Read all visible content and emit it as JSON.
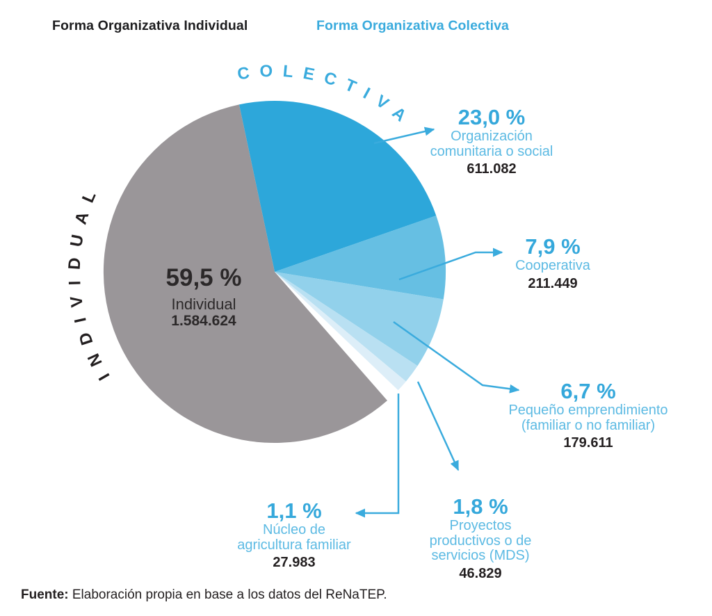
{
  "header": {
    "left_title": "Forma Organizativa Individual",
    "right_title": "Forma Organizativa Colectiva"
  },
  "arc_labels": {
    "individual": "INDIVIDUAL",
    "colectiva": "COLECTIVA"
  },
  "colors": {
    "accent_blue": "#3aabdd",
    "percent_blue": "#35a8db",
    "label_blue": "#5cbae3",
    "count_dark": "#231f20",
    "gray_slice": "#9a9699"
  },
  "chart_data": {
    "type": "pie",
    "legend_position": "around-pie",
    "slices": [
      {
        "label": "Individual",
        "group": "individual",
        "pct": 59.5,
        "pct_display": "59,5 %",
        "value": 1584624,
        "value_display": "1.584.624",
        "color": "#9a9699",
        "label_lines": [
          "Individual"
        ]
      },
      {
        "label": "Organización comunitaria o social",
        "group": "colectiva",
        "pct": 23.0,
        "pct_display": "23,0 %",
        "value": 611082,
        "value_display": "611.082",
        "color": "#2da7da",
        "label_lines": [
          "Organización",
          "comunitaria o social"
        ]
      },
      {
        "label": "Cooperativa",
        "group": "colectiva",
        "pct": 7.9,
        "pct_display": "7,9 %",
        "value": 211449,
        "value_display": "211.449",
        "color": "#66bfe3",
        "label_lines": [
          "Cooperativa"
        ]
      },
      {
        "label": "Pequeño emprendimiento (familiar o no familiar)",
        "group": "colectiva",
        "pct": 6.7,
        "pct_display": "6,7 %",
        "value": 179611,
        "value_display": "179.611",
        "color": "#92d1eb",
        "label_lines": [
          "Pequeño emprendimiento",
          "(familiar o no familiar)"
        ]
      },
      {
        "label": "Proyectos productivos o de servicios (MDS)",
        "group": "colectiva",
        "pct": 1.8,
        "pct_display": "1,8 %",
        "value": 46829,
        "value_display": "46.829",
        "color": "#b9e0f2",
        "label_lines": [
          "Proyectos",
          "productivos o de",
          "servicios (MDS)"
        ]
      },
      {
        "label": "Núcleo de agricultura familiar",
        "group": "colectiva",
        "pct": 1.1,
        "pct_display": "1,1 %",
        "value": 27983,
        "value_display": "27.983",
        "color": "#ddeef8",
        "label_lines": [
          "Núcleo de",
          "agricultura familiar"
        ]
      }
    ]
  },
  "footer": {
    "source_bold": "Fuente:",
    "source_text": " Elaboración propia en base a los datos del ReNaTEP."
  }
}
